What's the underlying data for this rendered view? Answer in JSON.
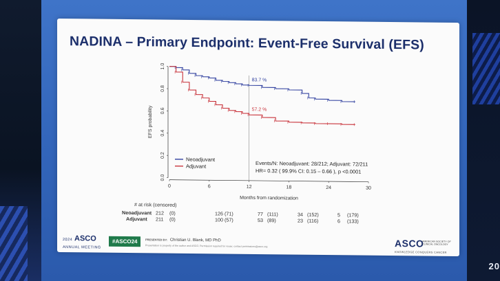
{
  "slide": {
    "title": "NADINA – Primary Endpoint: Event-Free Survival (EFS)"
  },
  "chart_data": {
    "type": "line",
    "xlabel": "Months from randomization",
    "ylabel": "EFS probability",
    "xlim": [
      0,
      30
    ],
    "ylim": [
      0.0,
      1.0
    ],
    "xticks": [
      "0",
      "6",
      "12",
      "18",
      "24",
      "30"
    ],
    "yticks": [
      "0.0",
      "0.2",
      "0.4",
      "0.6",
      "0.8",
      "1.0"
    ],
    "reference_line_x": 12,
    "series": [
      {
        "name": "Neoadjuvant",
        "color": "#2e3e9e",
        "x": [
          0,
          1,
          2,
          3,
          4,
          5,
          6,
          7,
          8,
          9,
          10,
          11,
          12,
          14,
          16,
          18,
          20,
          21,
          22,
          24,
          26,
          28
        ],
        "y": [
          1.0,
          0.99,
          0.97,
          0.94,
          0.92,
          0.91,
          0.9,
          0.88,
          0.87,
          0.86,
          0.85,
          0.84,
          0.837,
          0.82,
          0.81,
          0.8,
          0.77,
          0.73,
          0.72,
          0.71,
          0.7,
          0.7
        ],
        "label_at_12": "83.7 %"
      },
      {
        "name": "Adjuvant",
        "color": "#c8323a",
        "x": [
          0,
          1,
          2,
          3,
          4,
          5,
          6,
          7,
          8,
          9,
          10,
          11,
          12,
          14,
          16,
          18,
          20,
          22,
          24,
          26,
          28
        ],
        "y": [
          1.0,
          0.95,
          0.86,
          0.79,
          0.75,
          0.72,
          0.69,
          0.66,
          0.63,
          0.61,
          0.6,
          0.585,
          0.572,
          0.55,
          0.52,
          0.51,
          0.505,
          0.5,
          0.5,
          0.495,
          0.495
        ],
        "label_at_12": "57.2 %"
      }
    ],
    "annotation_lines": [
      "Events/N: Neoadjuvant: 28/212; Adjuvant: 72/211",
      "HR= 0.32 ( 99.9% CI: 0.15 – 0.66 ), p <0.0001"
    ],
    "legend": [
      "Neoadjuvant",
      "Adjuvant"
    ],
    "legend_placement": "bottom-left"
  },
  "at_risk": {
    "header": "# at risk (censored)",
    "rows": [
      {
        "label": "Neoadjuvant",
        "values": [
          "212",
          "(0)",
          "126",
          "(71)",
          "77",
          "(111)",
          "34",
          "(152)",
          "5",
          "(179)"
        ]
      },
      {
        "label": "Adjuvant",
        "values": [
          "211",
          "(0)",
          "100",
          "(57)",
          "53",
          "(89)",
          "23",
          "(116)",
          "6",
          "(133)"
        ]
      }
    ]
  },
  "footer": {
    "meeting_year": "2024",
    "meeting_brand": "ASCO",
    "meeting_sub": "ANNUAL MEETING",
    "hashtag": "#ASCO24",
    "presented_by_label": "PRESENTED BY:",
    "presenter": "Christian U. Blank, MD PhD",
    "disclaimer": "Presentation is property of the author and ASCO. Permission required for reuse; contact permissions@asco.org",
    "brand_right": "ASCO",
    "brand_right_sub": "AMERICAN SOCIETY OF CLINICAL ONCOLOGY",
    "brand_right_tagline": "KNOWLEDGE CONQUERS CANCER"
  },
  "background": {
    "right_edge_text": "20"
  }
}
